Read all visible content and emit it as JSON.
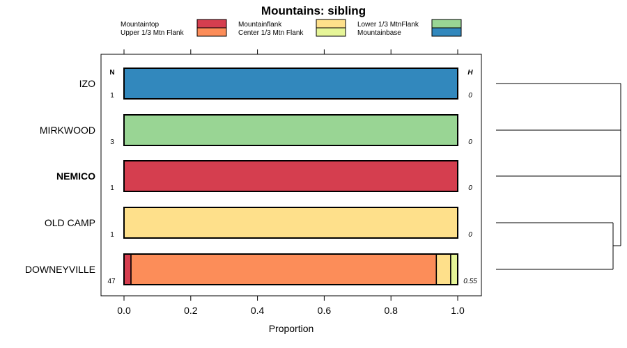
{
  "chart_data": {
    "type": "bar",
    "orientation": "horizontal",
    "stacked": true,
    "title": "Mountains: sibling",
    "xlabel": "Proportion",
    "ylabel": "",
    "xlim": [
      0,
      1
    ],
    "x_ticks": [
      "0.0",
      "0.2",
      "0.4",
      "0.6",
      "0.8",
      "1.0"
    ],
    "x_tick_values": [
      0,
      0.2,
      0.4,
      0.6,
      0.8,
      1.0
    ],
    "n_label": "N",
    "h_label": "H",
    "legend_entries": [
      {
        "name": "Mountaintop",
        "color": "#D53E4F"
      },
      {
        "name": "Upper 1/3 Mtn Flank",
        "color": "#FC8D59"
      },
      {
        "name": "Mountainflank",
        "color": "#FEE08B"
      },
      {
        "name": "Center 1/3 Mtn Flank",
        "color": "#E6F598"
      },
      {
        "name": "Lower 1/3 MtnFlank",
        "color": "#99D594"
      },
      {
        "name": "Mountainbase",
        "color": "#3288BD"
      }
    ],
    "categories": [
      "IZO",
      "MIRKWOOD",
      "NEMICO",
      "OLD CAMP",
      "DOWNEYVILLE"
    ],
    "bold_category": "NEMICO",
    "n_values": [
      "1",
      "3",
      "1",
      "1",
      "47"
    ],
    "h_values": [
      "0",
      "0",
      "0",
      "0",
      "0.55"
    ],
    "series": [
      {
        "name": "Mountaintop",
        "values": [
          0,
          0,
          1,
          0,
          0.021
        ]
      },
      {
        "name": "Upper 1/3 Mtn Flank",
        "values": [
          0,
          0,
          0,
          0,
          0.915
        ]
      },
      {
        "name": "Mountainflank",
        "values": [
          0,
          0,
          0,
          1,
          0.043
        ]
      },
      {
        "name": "Center 1/3 Mtn Flank",
        "values": [
          0,
          0,
          0,
          0,
          0.021
        ]
      },
      {
        "name": "Lower 1/3 MtnFlank",
        "values": [
          0,
          1,
          0,
          0,
          0
        ]
      },
      {
        "name": "Mountainbase",
        "values": [
          1,
          0,
          0,
          0,
          0
        ]
      }
    ],
    "dendrogram": {
      "merges": [
        {
          "left": "OLD CAMP",
          "right": "DOWNEYVILLE",
          "height": 0.55
        },
        {
          "left": "IZO",
          "right": "MIRKWOOD",
          "height": 1.0
        },
        {
          "left": "cluster",
          "right": "NEMICO",
          "height": 1.0
        }
      ]
    }
  }
}
